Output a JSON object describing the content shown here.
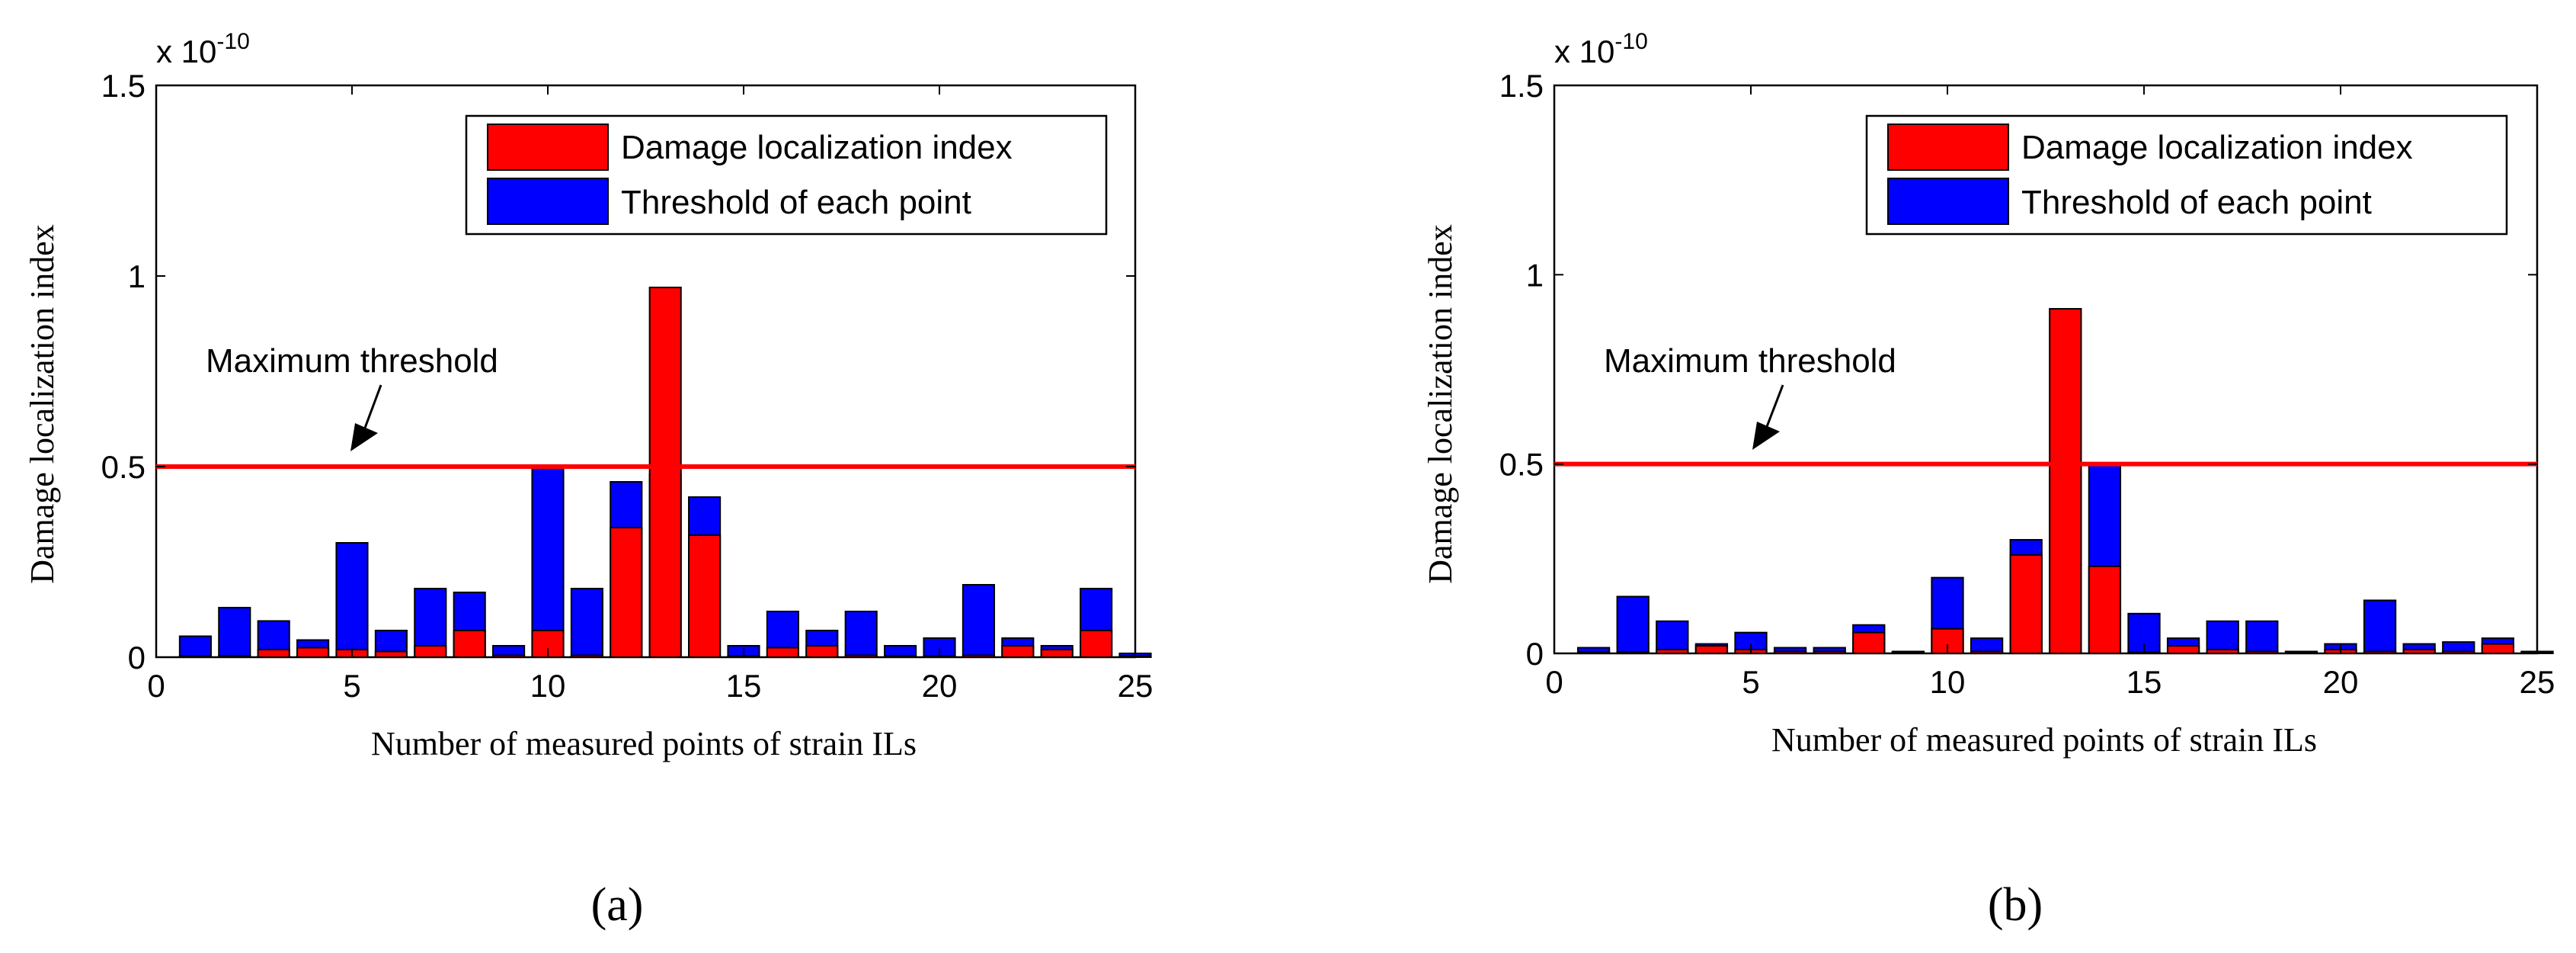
{
  "chart_data": [
    {
      "type": "bar",
      "panel_label": "(a)",
      "xlabel": "Number of measured points of strain ILs",
      "ylabel": "Damage localization index",
      "exponent_label": "x 10",
      "exponent_power": "-10",
      "xlim": [
        0,
        25
      ],
      "ylim": [
        0,
        1.5
      ],
      "xticks": [
        "0",
        "5",
        "10",
        "15",
        "20",
        "25"
      ],
      "yticks": [
        "0",
        "0.5",
        "1",
        "1.5"
      ],
      "x": [
        1,
        2,
        3,
        4,
        5,
        6,
        7,
        8,
        9,
        10,
        11,
        12,
        13,
        14,
        15,
        16,
        17,
        18,
        19,
        20,
        21,
        22,
        23,
        24,
        25
      ],
      "series": [
        {
          "name": "Threshold of each point",
          "color": "#0000ff",
          "values": [
            0.055,
            0.13,
            0.095,
            0.045,
            0.3,
            0.07,
            0.18,
            0.17,
            0.03,
            0.5,
            0.18,
            0.46,
            0.48,
            0.42,
            0.03,
            0.12,
            0.07,
            0.12,
            0.03,
            0.05,
            0.19,
            0.05,
            0.03,
            0.18,
            0.01
          ]
        },
        {
          "name": "Damage localization index",
          "color": "#ff0000",
          "values": [
            0.003,
            0.004,
            0.02,
            0.025,
            0.02,
            0.015,
            0.03,
            0.07,
            0.005,
            0.07,
            0.005,
            0.34,
            0.97,
            0.32,
            0.003,
            0.025,
            0.03,
            0.005,
            0.004,
            0.003,
            0.005,
            0.03,
            0.02,
            0.07,
            0.003
          ]
        }
      ],
      "threshold_line": {
        "value": 0.5,
        "color": "#ff0000"
      },
      "annotation": "Maximum threshold",
      "legend_position": "top-right"
    },
    {
      "type": "bar",
      "panel_label": "(b)",
      "xlabel": "Number of measured points of strain ILs",
      "ylabel": "Damage localization index",
      "exponent_label": "x 10",
      "exponent_power": "-10",
      "xlim": [
        0,
        25
      ],
      "ylim": [
        0,
        1.5
      ],
      "xticks": [
        "0",
        "5",
        "10",
        "15",
        "20",
        "25"
      ],
      "yticks": [
        "0",
        "0.5",
        "1",
        "1.5"
      ],
      "x": [
        1,
        2,
        3,
        4,
        5,
        6,
        7,
        8,
        9,
        10,
        11,
        12,
        13,
        14,
        15,
        16,
        17,
        18,
        19,
        20,
        21,
        22,
        23,
        24,
        25
      ],
      "series": [
        {
          "name": "Threshold of each point",
          "color": "#0000ff",
          "values": [
            0.015,
            0.15,
            0.085,
            0.025,
            0.055,
            0.015,
            0.015,
            0.075,
            0.005,
            0.2,
            0.04,
            0.3,
            0.48,
            0.5,
            0.105,
            0.04,
            0.085,
            0.085,
            0.005,
            0.025,
            0.14,
            0.025,
            0.03,
            0.04,
            0.005
          ]
        },
        {
          "name": "Damage localization index",
          "color": "#ff0000",
          "values": [
            0.003,
            0.004,
            0.01,
            0.02,
            0.01,
            0.005,
            0.005,
            0.055,
            0.003,
            0.065,
            0.005,
            0.26,
            0.91,
            0.23,
            0.003,
            0.02,
            0.01,
            0.005,
            0.002,
            0.01,
            0.005,
            0.01,
            0.005,
            0.025,
            0.002
          ]
        }
      ],
      "threshold_line": {
        "value": 0.5,
        "color": "#ff0000"
      },
      "annotation": "Maximum threshold",
      "legend_position": "top-right"
    }
  ]
}
